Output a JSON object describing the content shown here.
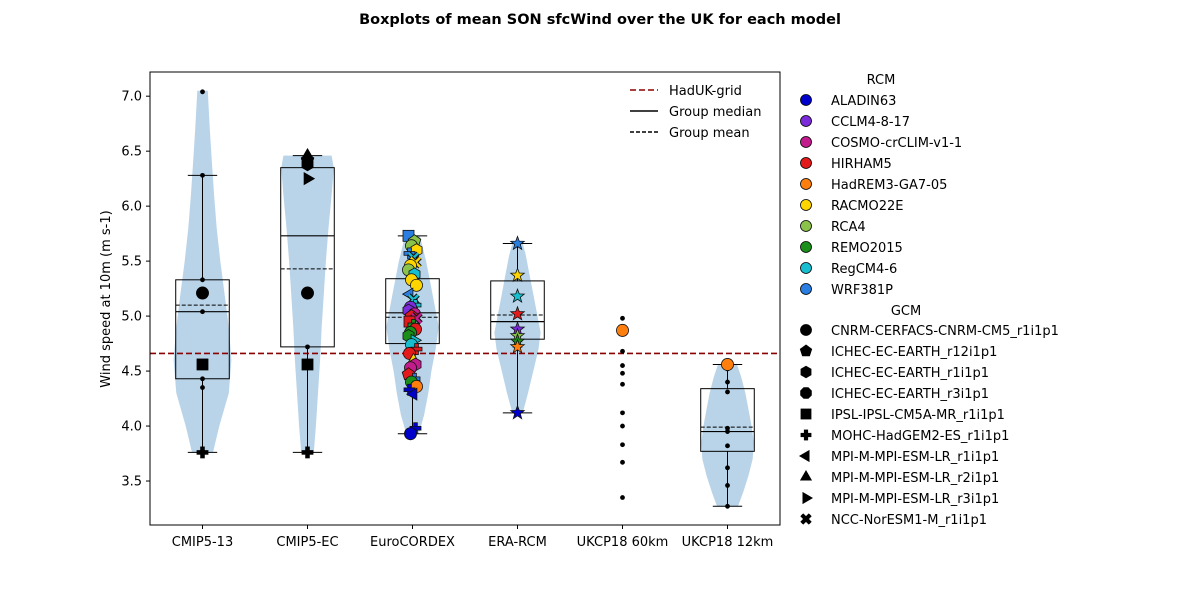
{
  "chart_data": {
    "type": "violin-box",
    "title": "Boxplots of mean SON sfcWind over the UK for each model",
    "ylabel": "Wind speed at 10m (m s-1)",
    "xlabel": "",
    "ylim": [
      3.1,
      7.22
    ],
    "yticks": [
      "3.5",
      "4.0",
      "4.5",
      "5.0",
      "5.5",
      "6.0",
      "6.5",
      "7.0"
    ],
    "ytick_values": [
      3.5,
      4.0,
      4.5,
      5.0,
      5.5,
      6.0,
      6.5,
      7.0
    ],
    "categories": [
      "CMIP5-13",
      "CMIP5-EC",
      "EuroCORDEX",
      "ERA-RCM",
      "UKCP18 60km",
      "UKCP18 12km"
    ],
    "reference_line": {
      "label": "HadUK-grid",
      "value": 4.66,
      "color": "#8b0000"
    },
    "line_legend": [
      {
        "label": "HadUK-grid",
        "style": "dashed-red"
      },
      {
        "label": "Group median",
        "style": "solid"
      },
      {
        "label": "Group mean",
        "style": "dashed"
      }
    ],
    "rcm_legend_title": "RCM",
    "rcm": [
      {
        "name": "ALADIN63",
        "color": "#0000cc"
      },
      {
        "name": "CCLM4-8-17",
        "color": "#7b2bd9"
      },
      {
        "name": "COSMO-crCLIM-v1-1",
        "color": "#c21c8c"
      },
      {
        "name": "HIRHAM5",
        "color": "#e31a1c"
      },
      {
        "name": "HadREM3-GA7-05",
        "color": "#ff7f0e"
      },
      {
        "name": "RACMO22E",
        "color": "#ffd500"
      },
      {
        "name": "RCA4",
        "color": "#8bc34a"
      },
      {
        "name": "REMO2015",
        "color": "#1a8f1a"
      },
      {
        "name": "RegCM4-6",
        "color": "#17becf"
      },
      {
        "name": "WRF381P",
        "color": "#2a7de1"
      }
    ],
    "gcm_legend_title": "GCM",
    "gcm": [
      {
        "name": "CNRM-CERFACS-CNRM-CM5_r1i1p1",
        "marker": "circle"
      },
      {
        "name": "ICHEC-EC-EARTH_r12i1p1",
        "marker": "pentagon"
      },
      {
        "name": "ICHEC-EC-EARTH_r1i1p1",
        "marker": "hexagon"
      },
      {
        "name": "ICHEC-EC-EARTH_r3i1p1",
        "marker": "octagon"
      },
      {
        "name": "IPSL-IPSL-CM5A-MR_r1i1p1",
        "marker": "square"
      },
      {
        "name": "MOHC-HadGEM2-ES_r1i1p1",
        "marker": "plus"
      },
      {
        "name": "MPI-M-MPI-ESM-LR_r1i1p1",
        "marker": "triangle-left"
      },
      {
        "name": "MPI-M-MPI-ESM-LR_r2i1p1",
        "marker": "triangle-up"
      },
      {
        "name": "MPI-M-MPI-ESM-LR_r3i1p1",
        "marker": "triangle-right"
      },
      {
        "name": "NCC-NorESM1-M_r1i1p1",
        "marker": "x"
      }
    ],
    "groups": [
      {
        "name": "CMIP5-13",
        "box": {
          "q1": 4.43,
          "median": 5.04,
          "q3": 5.33,
          "mean": 5.1,
          "whisker_low": 3.76,
          "whisker_high": 6.28
        },
        "violin": {
          "ys": [
            3.76,
            4.0,
            4.3,
            4.6,
            4.9,
            5.2,
            5.5,
            5.8,
            6.1,
            6.4,
            6.7,
            7.05
          ],
          "widths": [
            0.2,
            0.32,
            0.5,
            0.55,
            0.5,
            0.42,
            0.34,
            0.27,
            0.22,
            0.18,
            0.14,
            0.1
          ]
        },
        "small_points": [
          7.04,
          6.28,
          5.33,
          5.04,
          4.43,
          4.35,
          3.76
        ],
        "markers": [
          {
            "y": 5.21,
            "marker": "circle",
            "color": "#000000"
          },
          {
            "y": 4.56,
            "marker": "square",
            "color": "#000000"
          },
          {
            "y": 3.76,
            "marker": "plus",
            "color": "#000000"
          }
        ]
      },
      {
        "name": "CMIP5-EC",
        "box": {
          "q1": 4.72,
          "median": 5.73,
          "q3": 6.35,
          "mean": 5.43,
          "whisker_low": 3.76,
          "whisker_high": 6.46
        },
        "violin": {
          "ys": [
            3.76,
            4.0,
            4.3,
            4.6,
            4.9,
            5.2,
            5.5,
            5.8,
            6.1,
            6.35,
            6.46
          ],
          "widths": [
            0.12,
            0.16,
            0.2,
            0.24,
            0.27,
            0.31,
            0.35,
            0.4,
            0.46,
            0.5,
            0.46
          ]
        },
        "small_points": [
          6.46,
          6.35,
          4.72,
          3.76
        ],
        "markers": [
          {
            "y": 6.46,
            "marker": "triangle-up",
            "color": "#000000"
          },
          {
            "y": 6.42,
            "marker": "pentagon",
            "color": "#000000"
          },
          {
            "y": 6.38,
            "marker": "hexagon",
            "color": "#000000"
          },
          {
            "y": 6.25,
            "marker": "triangle-right",
            "color": "#000000"
          },
          {
            "y": 5.21,
            "marker": "circle",
            "color": "#000000"
          },
          {
            "y": 4.56,
            "marker": "square",
            "color": "#000000"
          },
          {
            "y": 3.76,
            "marker": "plus",
            "color": "#000000"
          }
        ]
      },
      {
        "name": "EuroCORDEX",
        "box": {
          "q1": 4.75,
          "median": 5.03,
          "q3": 5.34,
          "mean": 4.99,
          "whisker_low": 3.93,
          "whisker_high": 5.73
        },
        "violin": {
          "ys": [
            3.93,
            4.1,
            4.3,
            4.5,
            4.7,
            4.9,
            5.1,
            5.3,
            5.5,
            5.73
          ],
          "widths": [
            0.12,
            0.22,
            0.3,
            0.36,
            0.44,
            0.5,
            0.42,
            0.34,
            0.26,
            0.14
          ]
        },
        "small_points": [],
        "markers": [
          {
            "y": 5.73,
            "marker": "square",
            "color": "#2a7de1"
          },
          {
            "y": 5.68,
            "marker": "pentagon",
            "color": "#8bc34a"
          },
          {
            "y": 5.64,
            "marker": "circle",
            "color": "#8bc34a"
          },
          {
            "y": 5.6,
            "marker": "hexagon",
            "color": "#ffd500"
          },
          {
            "y": 5.57,
            "marker": "plus",
            "color": "#2a7de1"
          },
          {
            "y": 5.53,
            "marker": "x",
            "color": "#17becf"
          },
          {
            "y": 5.49,
            "marker": "x",
            "color": "#ffd500"
          },
          {
            "y": 5.46,
            "marker": "circle",
            "color": "#ffd500"
          },
          {
            "y": 5.42,
            "marker": "circle",
            "color": "#8bc34a"
          },
          {
            "y": 5.38,
            "marker": "hexagon",
            "color": "#17becf"
          },
          {
            "y": 5.33,
            "marker": "circle",
            "color": "#ffd500"
          },
          {
            "y": 5.28,
            "marker": "circle",
            "color": "#ffd500"
          },
          {
            "y": 5.2,
            "marker": "triangle-left",
            "color": "#2a7de1"
          },
          {
            "y": 5.15,
            "marker": "x",
            "color": "#17becf"
          },
          {
            "y": 5.1,
            "marker": "plus",
            "color": "#17becf"
          },
          {
            "y": 5.08,
            "marker": "circle",
            "color": "#7b2bd9"
          },
          {
            "y": 5.05,
            "marker": "hexagon",
            "color": "#7b2bd9"
          },
          {
            "y": 5.02,
            "marker": "circle",
            "color": "#c21c8c"
          },
          {
            "y": 5.0,
            "marker": "pentagon",
            "color": "#e31a1c"
          },
          {
            "y": 4.98,
            "marker": "x",
            "color": "#c21c8c"
          },
          {
            "y": 4.95,
            "marker": "square",
            "color": "#e31a1c"
          },
          {
            "y": 4.92,
            "marker": "plus",
            "color": "#1a8f1a"
          },
          {
            "y": 4.88,
            "marker": "circle",
            "color": "#e31a1c"
          },
          {
            "y": 4.85,
            "marker": "circle",
            "color": "#1a8f1a"
          },
          {
            "y": 4.82,
            "marker": "hexagon",
            "color": "#1a8f1a"
          },
          {
            "y": 4.78,
            "marker": "triangle-right",
            "color": "#17becf"
          },
          {
            "y": 4.74,
            "marker": "circle",
            "color": "#17becf"
          },
          {
            "y": 4.7,
            "marker": "plus",
            "color": "#e31a1c"
          },
          {
            "y": 4.66,
            "marker": "circle",
            "color": "#e31a1c"
          },
          {
            "y": 4.6,
            "marker": "triangle-up",
            "color": "#ffd500"
          },
          {
            "y": 4.56,
            "marker": "hexagon",
            "color": "#c21c8c"
          },
          {
            "y": 4.53,
            "marker": "circle",
            "color": "#c21c8c"
          },
          {
            "y": 4.47,
            "marker": "pentagon",
            "color": "#e31a1c"
          },
          {
            "y": 4.43,
            "marker": "plus",
            "color": "#2a7de1"
          },
          {
            "y": 4.4,
            "marker": "circle",
            "color": "#1a8f1a"
          },
          {
            "y": 4.36,
            "marker": "circle",
            "color": "#ff7f0e"
          },
          {
            "y": 4.33,
            "marker": "plus",
            "color": "#0000cc"
          },
          {
            "y": 4.29,
            "marker": "triangle-left",
            "color": "#0000cc"
          },
          {
            "y": 3.98,
            "marker": "plus",
            "color": "#0000cc"
          },
          {
            "y": 3.93,
            "marker": "circle",
            "color": "#0000cc"
          }
        ]
      },
      {
        "name": "ERA-RCM",
        "box": {
          "q1": 4.79,
          "median": 4.95,
          "q3": 5.32,
          "mean": 5.01,
          "whisker_low": 4.12,
          "whisker_high": 5.66
        },
        "violin": {
          "ys": [
            4.12,
            4.3,
            4.5,
            4.7,
            4.85,
            5.0,
            5.2,
            5.4,
            5.55,
            5.66
          ],
          "widths": [
            0.1,
            0.2,
            0.3,
            0.4,
            0.44,
            0.38,
            0.3,
            0.22,
            0.16,
            0.1
          ]
        },
        "small_points": [],
        "markers": [
          {
            "y": 5.66,
            "marker": "star",
            "color": "#2a7de1"
          },
          {
            "y": 5.37,
            "marker": "star",
            "color": "#ffd500"
          },
          {
            "y": 5.18,
            "marker": "star",
            "color": "#17becf"
          },
          {
            "y": 5.02,
            "marker": "star",
            "color": "#e31a1c"
          },
          {
            "y": 4.88,
            "marker": "star",
            "color": "#7b2bd9"
          },
          {
            "y": 4.82,
            "marker": "star",
            "color": "#8bc34a"
          },
          {
            "y": 4.77,
            "marker": "star",
            "color": "#1a8f1a"
          },
          {
            "y": 4.72,
            "marker": "star",
            "color": "#ff7f0e"
          },
          {
            "y": 4.12,
            "marker": "star",
            "color": "#0000cc"
          }
        ]
      },
      {
        "name": "UKCP18 60km",
        "box": null,
        "violin": null,
        "small_points": [
          4.98,
          4.68,
          4.55,
          4.48,
          4.38,
          4.12,
          4.0,
          3.83,
          3.67,
          3.35
        ],
        "markers": [
          {
            "y": 4.87,
            "marker": "circle",
            "color": "#ff7f0e"
          }
        ]
      },
      {
        "name": "UKCP18 12km",
        "box": {
          "q1": 3.77,
          "median": 3.95,
          "q3": 4.34,
          "mean": 3.99,
          "whisker_low": 3.27,
          "whisker_high": 4.56
        },
        "violin": {
          "ys": [
            3.27,
            3.4,
            3.55,
            3.7,
            3.85,
            4.0,
            4.15,
            4.3,
            4.45,
            4.56
          ],
          "widths": [
            0.2,
            0.3,
            0.4,
            0.48,
            0.5,
            0.46,
            0.4,
            0.34,
            0.26,
            0.18
          ]
        },
        "small_points": [
          4.52,
          4.4,
          4.31,
          3.98,
          3.95,
          3.82,
          3.62,
          3.46,
          3.27
        ],
        "markers": [
          {
            "y": 4.56,
            "marker": "circle",
            "color": "#ff7f0e"
          }
        ]
      }
    ]
  }
}
